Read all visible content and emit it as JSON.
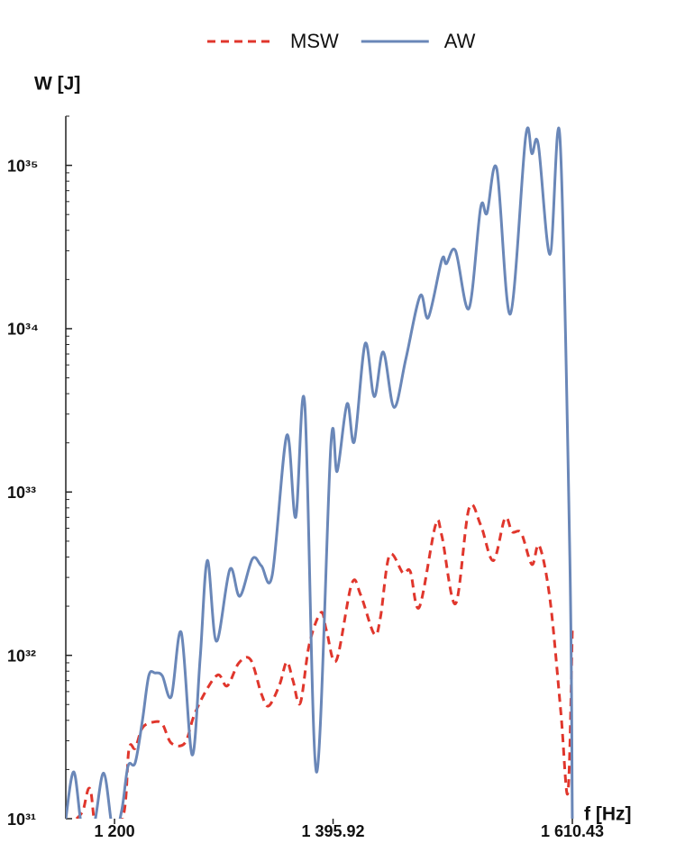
{
  "chart_data": {
    "type": "line",
    "log_y": true,
    "legend_position": "top",
    "y_label": "W [J]",
    "x_label": "f [Hz]",
    "xlim": [
      1156.3,
      1610.43
    ],
    "xticks": [
      {
        "value": 1200,
        "label": "1 200"
      },
      {
        "value": 1395.92,
        "label": "1 395.92"
      },
      {
        "value": 1610.43,
        "label": "1 610.43"
      }
    ],
    "ylim": [
      1e+31,
      2e+35
    ],
    "yticks": [
      {
        "value": 1e+31,
        "label": "10³¹"
      },
      {
        "value": 1e+32,
        "label": "10³²"
      },
      {
        "value": 1e+33,
        "label": "10³³"
      },
      {
        "value": 1e+34,
        "label": "10³⁴"
      },
      {
        "value": 1e+35,
        "label": "10³⁵"
      }
    ],
    "series": [
      {
        "name": "MSW",
        "color": "#e0362c",
        "line_style": "dashed",
        "x": [
          1166.0,
          1171.7,
          1178.1,
          1186.2,
          1207.2,
          1212.9,
          1218.5,
          1225.0,
          1234.7,
          1242.8,
          1250.9,
          1263.0,
          1271.1,
          1281.6,
          1292.9,
          1301.0,
          1311.5,
          1322.0,
          1331.7,
          1338.2,
          1347.9,
          1354.4,
          1360.0,
          1366.5,
          1374.6,
          1385.1,
          1390.0,
          1398.8,
          1412.6,
          1420.6,
          1432.8,
          1438.4,
          1446.5,
          1458.6,
          1465.1,
          1473.2,
          1487.7,
          1493.4,
          1505.7,
          1517.7,
          1528.2,
          1539.5,
          1550.0,
          1556.5,
          1564.6,
          1574.2,
          1580.7,
          1590.4,
          1600.1,
          1606.5,
          1610.4
        ],
        "values": [
          1e+31,
          1.12e+31,
          1.52e+31,
          7e+30,
          1e+31,
          2.66e+31,
          2.7e+31,
          3.6e+31,
          3.9e+31,
          3.8e+31,
          2.9e+31,
          2.9e+31,
          4.25e+31,
          6e+31,
          7.6e+31,
          6.5e+31,
          9e+31,
          9.4e+31,
          5.8e+31,
          4.9e+31,
          6.6e+31,
          9.1e+31,
          7e+31,
          5.1e+31,
          1.17e+32,
          1.83e+32,
          1.42e+32,
          9.3e+31,
          2.74e+32,
          2.35e+32,
          1.35e+32,
          1.71e+32,
          4.1e+32,
          3.19e+32,
          3.27e+32,
          1.97e+32,
          6.25e+32,
          5.4e+32,
          2.07e+32,
          7.9e+32,
          6.3e+32,
          3.8e+32,
          6.9e+32,
          5.7e+32,
          5.6e+32,
          3.6e+32,
          4.7e+32,
          2.2e+32,
          4.5e+31,
          1.45e+31,
          1.42e+32
        ]
      },
      {
        "name": "AW",
        "color": "#6a87b8",
        "line_style": "solid",
        "x": [
          1156.3,
          1163.6,
          1171.7,
          1181.4,
          1190.3,
          1199.1,
          1206.4,
          1212.1,
          1218.5,
          1225.0,
          1230.7,
          1236.3,
          1242.8,
          1250.9,
          1259.8,
          1269.5,
          1276.8,
          1283.2,
          1291.3,
          1303.4,
          1312.3,
          1323.6,
          1331.7,
          1341.4,
          1354.4,
          1362.4,
          1370.5,
          1381.0,
          1394.0,
          1399.6,
          1408.5,
          1415.0,
          1424.7,
          1432.8,
          1440.9,
          1450.6,
          1461.1,
          1474.0,
          1481.3,
          1493.4,
          1497.5,
          1505.7,
          1517.7,
          1528.2,
          1533.9,
          1542.7,
          1554.8,
          1568.6,
          1574.2,
          1579.9,
          1590.4,
          1599.3,
          1608.2,
          1610.4
        ],
        "values": [
          1e+31,
          1.93e+31,
          8e+30,
          9e+30,
          1.9e+31,
          8e+30,
          1.12e+31,
          2.1e+31,
          2.2e+31,
          4e+31,
          7.5e+31,
          7.8e+31,
          7.5e+31,
          5.6e+31,
          1.38e+32,
          2.46e+31,
          9.7e+31,
          3.81e+32,
          1.22e+32,
          3.36e+32,
          2.3e+32,
          3.9e+32,
          3.53e+32,
          3.11e+32,
          2.22e+33,
          7e+32,
          3.47e+33,
          1.93e+31,
          1.96e+33,
          1.34e+33,
          3.47e+33,
          2.04e+33,
          8.1e+33,
          3.84e+33,
          7.2e+33,
          3.3e+33,
          6.5e+33,
          1.59e+34,
          1.17e+34,
          2.64e+34,
          2.5e+34,
          3e+34,
          1.33e+34,
          5.5e+34,
          5.1e+34,
          9.5e+34,
          1.23e+34,
          1.5e+35,
          1.18e+35,
          1.34e+35,
          2.85e+34,
          1.48e+35,
          3.9e+32,
          1e+31
        ]
      }
    ]
  }
}
